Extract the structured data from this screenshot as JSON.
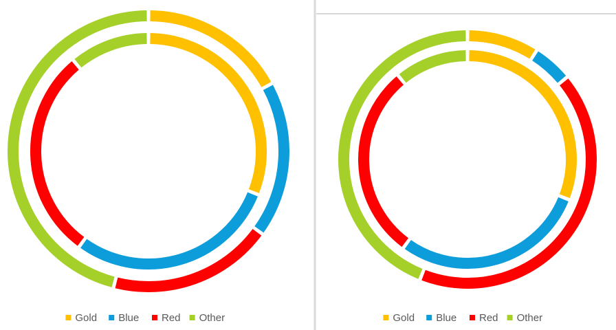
{
  "chart_data": [
    {
      "type": "doughnut",
      "categories": [
        "Gold",
        "Blue",
        "Red",
        "Other"
      ],
      "colors": [
        "#ffc000",
        "#0d9ddb",
        "#ff0000",
        "#a5d02a"
      ],
      "series": [
        {
          "values": [
            17,
            18,
            19,
            46
          ]
        },
        {
          "values": [
            31,
            29,
            29,
            11
          ]
        }
      ]
    },
    {
      "type": "doughnut",
      "categories": [
        "Gold",
        "Blue",
        "Red",
        "Other"
      ],
      "colors": [
        "#ffc000",
        "#0d9ddb",
        "#ff0000",
        "#a5d02a"
      ],
      "series": [
        {
          "values": [
            9,
            5,
            42,
            44
          ]
        },
        {
          "values": [
            31,
            29,
            29,
            11
          ]
        }
      ]
    }
  ]
}
